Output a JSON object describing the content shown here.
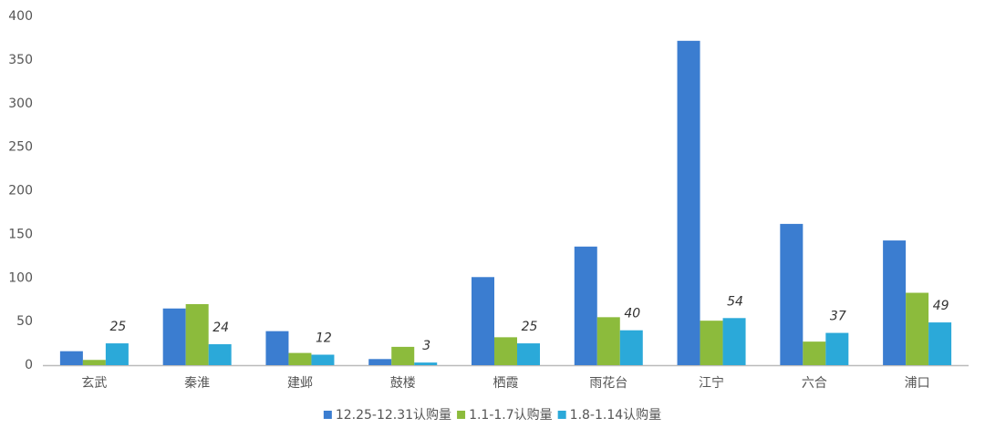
{
  "chart_data": {
    "type": "bar",
    "categories": [
      "玄武",
      "秦淮",
      "建邺",
      "鼓楼",
      "栖霞",
      "雨花台",
      "江宁",
      "六合",
      "浦口"
    ],
    "series": [
      {
        "name": "12.25-12.31认购量",
        "color": "#3b7dd0",
        "values": [
          16,
          65,
          39,
          7,
          101,
          136,
          372,
          162,
          143
        ]
      },
      {
        "name": "1.1-1.7认购量",
        "color": "#8cbb3c",
        "values": [
          6,
          70,
          14,
          21,
          32,
          55,
          51,
          27,
          83
        ]
      },
      {
        "name": "1.8-1.14认购量",
        "color": "#2ba9d9",
        "values": [
          25,
          24,
          12,
          3,
          25,
          40,
          54,
          37,
          49
        ],
        "show_labels": true
      }
    ],
    "ylim": [
      0,
      400
    ],
    "yticks": [
      0,
      50,
      100,
      150,
      200,
      250,
      300,
      350,
      400
    ],
    "grid": false,
    "legend": "bottom"
  }
}
